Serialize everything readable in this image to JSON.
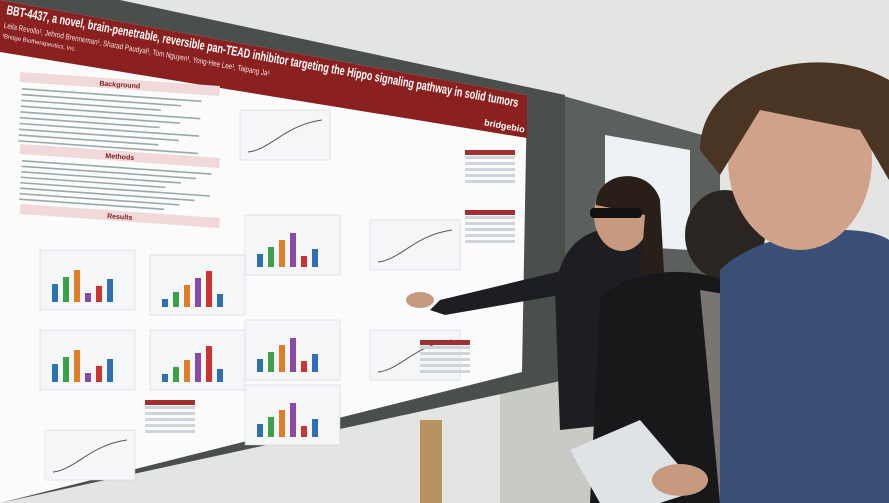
{
  "poster": {
    "title": "BBT-4437, a novel, brain-penetrable, reversible pan-TEAD inhibitor targeting the Hippo signaling pathway in solid tumors",
    "authors": "Leila Revollo¹, Jehrod Brenneman¹, Sharad Paudyal¹, Tom Nguyen¹, Yong-Hee Lee¹, Taipang Ja¹",
    "affiliation": "¹Bridge Biotherapeutics, Inc.",
    "logo": "bridgebio",
    "sections": [
      "Background",
      "Methods",
      "Results"
    ]
  }
}
